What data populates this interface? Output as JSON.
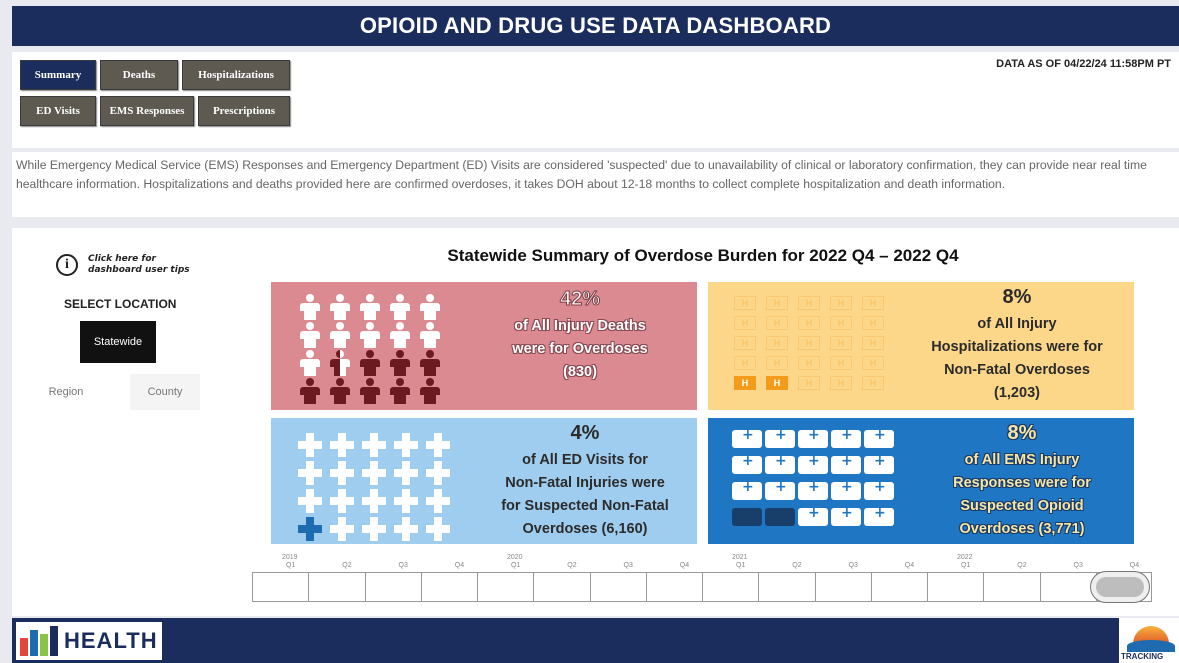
{
  "header": {
    "title": "OPIOID AND DRUG USE DATA DASHBOARD"
  },
  "nav": {
    "tabs": [
      {
        "label": "Summary",
        "active": true
      },
      {
        "label": "Deaths",
        "active": false
      },
      {
        "label": "Hospitalizations",
        "active": false
      },
      {
        "label": "ED Visits",
        "active": false
      },
      {
        "label": "EMS Responses",
        "active": false
      },
      {
        "label": "Prescriptions",
        "active": false
      }
    ],
    "data_as_of": "DATA AS OF 04/22/24 11:58PM PT"
  },
  "description": "While Emergency Medical Service (EMS) Responses and Emergency Department (ED) Visits are considered 'suspected' due to unavailability of clinical or laboratory confirmation, they can provide near real time healthcare information. Hospitalizations and deaths provided here are confirmed overdoses, it takes DOH about 12-18 months to collect complete hospitalization and death information.",
  "sidebar": {
    "tips": "Click here for dashboard user tips",
    "select_label": "SELECT LOCATION",
    "locations": [
      {
        "label": "Statewide",
        "active": true
      },
      {
        "label": "Region",
        "active": false
      },
      {
        "label": "County",
        "active": false
      }
    ]
  },
  "summary": {
    "title": "Statewide Summary of Overdose Burden for 2022 Q4 – 2022 Q4",
    "tiles": {
      "deaths": {
        "percent": "42%",
        "lines": [
          "of All Injury Deaths",
          "were for Overdoses",
          "(830)"
        ],
        "color": "#dc8a92",
        "icon": "person-icon",
        "filled_fraction": 0.42
      },
      "hospitalizations": {
        "percent": "8%",
        "lines": [
          "of All Injury",
          "Hospitalizations were for",
          "Non-Fatal Overdoses",
          "(1,203)"
        ],
        "color": "#fcd78a",
        "icon": "hospital-icon",
        "filled_fraction": 0.08
      },
      "ed_visits": {
        "percent": "4%",
        "lines": [
          "of All ED Visits for",
          "Non-Fatal Injuries were",
          "for Suspected Non-Fatal",
          "Overdoses (6,160)"
        ],
        "color": "#9fcdef",
        "icon": "medical-cross-icon",
        "filled_fraction": 0.04
      },
      "ems": {
        "percent": "8%",
        "lines": [
          "of All EMS Injury",
          "Responses were for",
          "Suspected Opioid",
          "Overdoses (3,771)"
        ],
        "color": "#1f77c4",
        "icon": "ambulance-icon",
        "filled_fraction": 0.08
      }
    }
  },
  "timeline": {
    "years": [
      "2019",
      "2020",
      "2021",
      "2022"
    ],
    "quarters": [
      "Q1",
      "Q2",
      "Q3",
      "Q4",
      "Q1",
      "Q2",
      "Q3",
      "Q4",
      "Q1",
      "Q2",
      "Q3",
      "Q4",
      "Q1",
      "Q2",
      "Q3",
      "Q4"
    ],
    "selected": "2022 Q4"
  },
  "footer": {
    "logo_text": "HEALTH",
    "tracking_text": "TRACKING"
  }
}
